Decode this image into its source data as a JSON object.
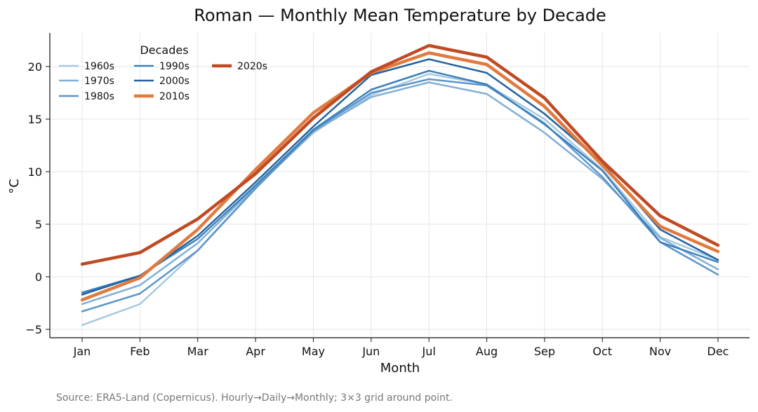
{
  "chart_data": {
    "type": "line",
    "title": "Roman — Monthly Mean Temperature by Decade",
    "xlabel": "Month",
    "ylabel": "°C",
    "categories": [
      "Jan",
      "Feb",
      "Mar",
      "Apr",
      "May",
      "Jun",
      "Jul",
      "Aug",
      "Sep",
      "Oct",
      "Nov",
      "Dec"
    ],
    "ylim": [
      -5.8,
      23.2
    ],
    "yticks": [
      -5,
      0,
      5,
      10,
      15,
      20
    ],
    "ytick_labels": [
      "−5",
      "0",
      "5",
      "10",
      "15",
      "20"
    ],
    "grid": true,
    "legend": {
      "title": "Decades",
      "placement": "top-left",
      "columns": 3
    },
    "series": [
      {
        "name": "1960s",
        "color": "#a6c8e0",
        "width": 2.5,
        "values": [
          -4.6,
          -2.6,
          2.5,
          8.5,
          13.7,
          17.3,
          19.3,
          18.3,
          15.0,
          10.2,
          3.8,
          1.6
        ]
      },
      {
        "name": "1970s",
        "color": "#82afd6",
        "width": 2.5,
        "values": [
          -2.6,
          -0.8,
          3.2,
          8.6,
          13.8,
          17.1,
          18.5,
          17.4,
          13.7,
          9.3,
          3.7,
          0.7
        ]
      },
      {
        "name": "1980s",
        "color": "#5d95c9",
        "width": 2.5,
        "values": [
          -3.3,
          -1.6,
          2.5,
          8.4,
          13.9,
          17.5,
          18.8,
          18.2,
          14.6,
          9.5,
          3.3,
          0.2
        ]
      },
      {
        "name": "1990s",
        "color": "#3a80bb",
        "width": 2.5,
        "values": [
          -1.5,
          0.1,
          3.6,
          8.7,
          14.0,
          17.8,
          19.6,
          18.3,
          14.5,
          10.1,
          3.3,
          1.4
        ]
      },
      {
        "name": "2000s",
        "color": "#22629f",
        "width": 2.5,
        "values": [
          -1.7,
          0.1,
          3.9,
          9.0,
          14.3,
          19.2,
          20.7,
          19.4,
          15.5,
          10.8,
          4.5,
          1.6
        ]
      },
      {
        "name": "2010s",
        "color": "#e07a3f",
        "width": 4.5,
        "values": [
          -2.2,
          -0.1,
          4.5,
          10.2,
          15.6,
          19.4,
          21.3,
          20.2,
          16.2,
          10.6,
          4.8,
          2.4
        ]
      },
      {
        "name": "2020s",
        "color": "#bf4a23",
        "width": 4.5,
        "values": [
          1.2,
          2.3,
          5.5,
          9.8,
          15.1,
          19.5,
          22.0,
          20.9,
          17.0,
          11.0,
          5.8,
          3.0
        ]
      }
    ]
  },
  "footer": {
    "source": "Source: ERA5-Land (Copernicus). Hourly→Daily→Monthly; 3×3 grid around point."
  }
}
